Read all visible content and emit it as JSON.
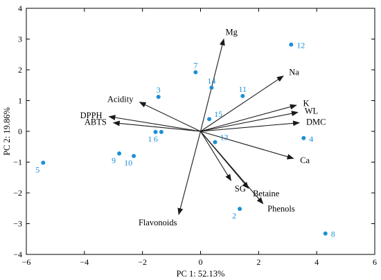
{
  "chart_data": {
    "type": "scatter",
    "subtype": "biplot",
    "xlabel": "PC 1: 52.13%",
    "ylabel": "PC 2: 19.86%",
    "xlim": [
      -6,
      6
    ],
    "ylim": [
      -4,
      4
    ],
    "xticks": [
      "−6",
      "−4",
      "−2",
      "0",
      "2",
      "4",
      "6"
    ],
    "yticks": [
      "−4",
      "−3",
      "−2",
      "−1",
      "0",
      "1",
      "2",
      "3",
      "4"
    ],
    "xtick_values": [
      -6,
      -4,
      -2,
      0,
      2,
      4,
      6
    ],
    "ytick_values": [
      -4,
      -3,
      -2,
      -1,
      0,
      1,
      2,
      3,
      4
    ],
    "grid": false,
    "point_color": "#1e8fd6",
    "label_color": "#1e8fd6",
    "vector_color": "#1a1a1a",
    "points": [
      {
        "label": "1",
        "x": -1.55,
        "y": -0.02
      },
      {
        "label": "2",
        "x": 1.35,
        "y": -2.52
      },
      {
        "label": "3",
        "x": -1.45,
        "y": 1.12
      },
      {
        "label": "4",
        "x": 3.55,
        "y": -0.22
      },
      {
        "label": "5",
        "x": -5.42,
        "y": -1.02
      },
      {
        "label": "6",
        "x": -1.35,
        "y": -0.02
      },
      {
        "label": "7",
        "x": -0.17,
        "y": 1.92
      },
      {
        "label": "8",
        "x": 4.3,
        "y": -3.32
      },
      {
        "label": "9",
        "x": -2.8,
        "y": -0.72
      },
      {
        "label": "10",
        "x": -2.3,
        "y": -0.8
      },
      {
        "label": "11",
        "x": 1.45,
        "y": 1.15
      },
      {
        "label": "12",
        "x": 3.12,
        "y": 2.82
      },
      {
        "label": "13",
        "x": 0.5,
        "y": -0.35
      },
      {
        "label": "14",
        "x": 0.38,
        "y": 1.42
      },
      {
        "label": "15",
        "x": 0.3,
        "y": 0.4
      }
    ],
    "vectors": [
      {
        "name": "Mg",
        "x": 0.8,
        "y": 3.0
      },
      {
        "name": "Na",
        "x": 2.85,
        "y": 1.8
      },
      {
        "name": "K",
        "x": 3.3,
        "y": 0.85
      },
      {
        "name": "WL",
        "x": 3.35,
        "y": 0.62
      },
      {
        "name": "DMC",
        "x": 3.4,
        "y": 0.28
      },
      {
        "name": "Ca",
        "x": 3.2,
        "y": -0.88
      },
      {
        "name": "Betaine",
        "x": 1.65,
        "y": -1.85
      },
      {
        "name": "Phenols",
        "x": 2.15,
        "y": -2.35
      },
      {
        "name": "SG",
        "x": 1.05,
        "y": -1.6
      },
      {
        "name": "Flavonoids",
        "x": -0.75,
        "y": -2.7
      },
      {
        "name": "Acidity",
        "x": -2.1,
        "y": 0.95
      },
      {
        "name": "DPPH",
        "x": -3.15,
        "y": 0.48
      },
      {
        "name": "ABTS",
        "x": -3.0,
        "y": 0.28
      }
    ]
  }
}
